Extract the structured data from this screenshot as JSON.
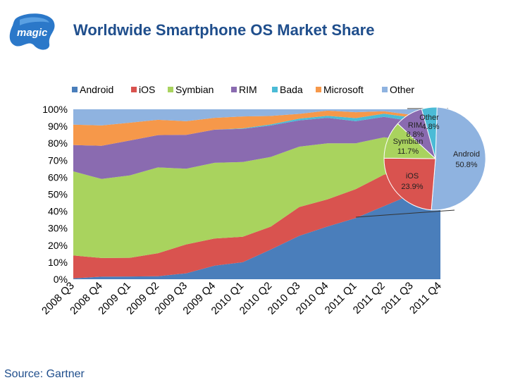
{
  "header": {
    "logo_text": "magic",
    "title": "Worldwide Smartphone OS Market Share"
  },
  "footer": {
    "source": "Source: Gartner"
  },
  "colors": {
    "Android": "#4a7ebb",
    "iOS": "#d9534f",
    "Symbian": "#a9d35e",
    "RIM": "#8a6bb0",
    "Bada": "#4bbbd6",
    "Microsoft": "#f6984a",
    "Other": "#8fb3e0",
    "title": "#1f4e8c"
  },
  "chart_data": [
    {
      "type": "area",
      "stacking": "percent",
      "categories": [
        "2008 Q3",
        "2008 Q4",
        "2009 Q1",
        "2009 Q2",
        "2009 Q3",
        "2009 Q4",
        "2010 Q1",
        "2010 Q2",
        "2010 Q3",
        "2010 Q4",
        "2011 Q1",
        "2011 Q2",
        "2011 Q3",
        "2011 Q4"
      ],
      "series": [
        {
          "name": "Android",
          "values": [
            0.5,
            1.5,
            1.6,
            1.8,
            3.5,
            8.0,
            10.0,
            17.5,
            25.5,
            31.0,
            36.0,
            43.0,
            50.0,
            52.0
          ]
        },
        {
          "name": "iOS",
          "values": [
            13.5,
            11.0,
            11.0,
            13.5,
            17.0,
            16.0,
            15.0,
            13.5,
            17.0,
            16.0,
            17.0,
            18.5,
            15.0,
            24.0
          ]
        },
        {
          "name": "Symbian",
          "values": [
            49.5,
            46.5,
            48.5,
            50.5,
            44.5,
            44.5,
            44.0,
            41.0,
            35.5,
            33.0,
            27.0,
            22.0,
            17.0,
            12.0
          ]
        },
        {
          "name": "RIM",
          "values": [
            15.5,
            19.5,
            20.5,
            19.0,
            20.0,
            19.5,
            19.5,
            18.5,
            15.5,
            15.0,
            13.0,
            12.0,
            11.0,
            9.0
          ]
        },
        {
          "name": "Bada",
          "values": [
            0,
            0,
            0,
            0,
            0,
            0,
            0.3,
            0.6,
            1.0,
            1.2,
            1.8,
            1.9,
            2.2,
            2.0
          ]
        },
        {
          "name": "Microsoft",
          "values": [
            12.0,
            12.0,
            10.5,
            9.0,
            8.0,
            7.0,
            7.0,
            5.0,
            2.8,
            3.0,
            3.5,
            1.5,
            1.5,
            1.0
          ]
        },
        {
          "name": "Other",
          "values": [
            9.0,
            9.5,
            7.9,
            6.2,
            7.0,
            5.0,
            4.2,
            3.9,
            2.7,
            0.8,
            1.7,
            1.1,
            3.3,
            0
          ]
        }
      ],
      "y_tick_labels": [
        "0%",
        "10%",
        "20%",
        "30%",
        "40%",
        "50%",
        "60%",
        "70%",
        "80%",
        "90%",
        "100%"
      ],
      "ylim": [
        0,
        100
      ],
      "grid": false,
      "legend": "top",
      "legend_items": [
        "Android",
        "iOS",
        "Symbian",
        "RIM",
        "Bada",
        "Microsoft",
        "Other"
      ]
    },
    {
      "type": "pie",
      "period": "2011 Q4",
      "slices": [
        {
          "label": "Android",
          "value": 50.8,
          "text": "50.8%"
        },
        {
          "label": "iOS",
          "value": 23.9,
          "text": "23.9%"
        },
        {
          "label": "Symbian",
          "value": 11.7,
          "text": "11.7%"
        },
        {
          "label": "RIM",
          "value": 8.8,
          "text": "8.8%"
        },
        {
          "label": "Other",
          "value": 4.8,
          "text": "4.8%"
        }
      ]
    }
  ]
}
